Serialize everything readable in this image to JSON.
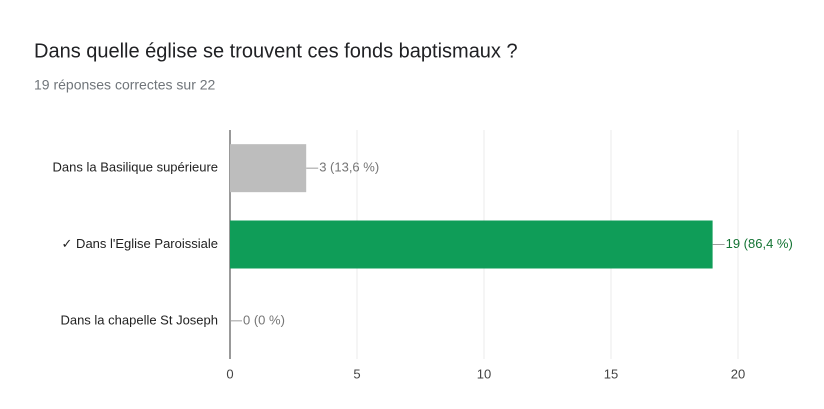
{
  "chart_data": {
    "type": "bar",
    "orientation": "horizontal",
    "title": "Dans quelle église se trouvent ces fonds baptismaux ?",
    "subtitle": "19 réponses correctes sur 22",
    "categories": [
      "Dans la Basilique supérieure",
      "✓ Dans l'Eglise Paroissiale",
      "Dans la chapelle St Joseph"
    ],
    "values": [
      3,
      19,
      0
    ],
    "value_labels": [
      "3 (13,6 %)",
      "19 (86,4 %)",
      "0 (0 %)"
    ],
    "colors": [
      "#bdbdbd",
      "#0f9d58",
      "#bdbdbd"
    ],
    "value_label_colors": [
      "#757575",
      "#137333",
      "#757575"
    ],
    "xlim": [
      0,
      20
    ],
    "xticks": [
      0,
      5,
      10,
      15,
      20
    ],
    "grid": true
  }
}
